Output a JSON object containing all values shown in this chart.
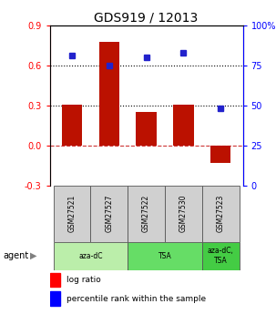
{
  "title": "GDS919 / 12013",
  "categories": [
    "GSM27521",
    "GSM27527",
    "GSM27522",
    "GSM27530",
    "GSM27523"
  ],
  "bar_values": [
    0.305,
    0.775,
    0.25,
    0.305,
    -0.13
  ],
  "blue_pct": [
    81,
    75,
    80,
    83,
    48
  ],
  "bar_color": "#bb1100",
  "blue_color": "#2222cc",
  "ylim_left": [
    -0.3,
    0.9
  ],
  "ylim_right": [
    0,
    100
  ],
  "yticks_left": [
    -0.3,
    0.0,
    0.3,
    0.6,
    0.9
  ],
  "yticks_right": [
    0,
    25,
    50,
    75,
    100
  ],
  "ytick_labels_right": [
    "0",
    "25",
    "50",
    "75",
    "100%"
  ],
  "hlines": [
    0.3,
    0.6
  ],
  "agent_labels": [
    "aza-dC",
    "TSA",
    "aza-dC,\nTSA"
  ],
  "agent_groups": [
    [
      0,
      1
    ],
    [
      2,
      3
    ],
    [
      4
    ]
  ],
  "agent_colors": [
    "#aaddaa",
    "#66cc66",
    "#44bb44"
  ],
  "agent_row_label": "agent",
  "legend_bar_label": "log ratio",
  "legend_blue_label": "percentile rank within the sample",
  "title_fontsize": 10,
  "tick_fontsize": 7,
  "bar_width": 0.55
}
